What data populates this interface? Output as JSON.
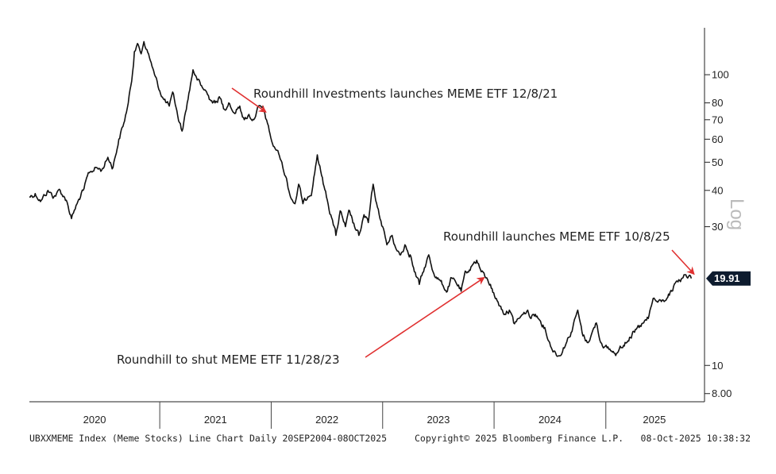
{
  "chart_data": {
    "type": "line",
    "y_scale": "log",
    "ylabel": "Log",
    "ylim": [
      7.5,
      145
    ],
    "y_ticks": [
      8,
      10,
      30,
      40,
      50,
      60,
      70,
      80,
      100
    ],
    "y_tick_labels": [
      "8.00",
      "10",
      "30",
      "40",
      "50",
      "60",
      "70",
      "80",
      "100"
    ],
    "x_range": [
      "2019-11-01",
      "2025-11-15"
    ],
    "x_year_labels": [
      "2020",
      "2021",
      "2022",
      "2023",
      "2024",
      "2025"
    ],
    "grid": false,
    "last_value_label": "19.91",
    "series": [
      {
        "name": "",
        "color": "#111111",
        "points": [
          [
            "2019-11-01",
            38
          ],
          [
            "2019-11-20",
            39
          ],
          [
            "2019-12-10",
            37
          ],
          [
            "2020-01-01",
            40
          ],
          [
            "2020-01-20",
            38
          ],
          [
            "2020-02-10",
            40
          ],
          [
            "2020-03-01",
            37
          ],
          [
            "2020-03-18",
            32
          ],
          [
            "2020-04-05",
            36
          ],
          [
            "2020-04-25",
            40
          ],
          [
            "2020-05-15",
            46
          ],
          [
            "2020-06-05",
            48
          ],
          [
            "2020-06-25",
            47
          ],
          [
            "2020-07-15",
            52
          ],
          [
            "2020-08-01",
            48
          ],
          [
            "2020-08-20",
            60
          ],
          [
            "2020-09-05",
            68
          ],
          [
            "2020-09-20",
            80
          ],
          [
            "2020-10-01",
            95
          ],
          [
            "2020-10-10",
            120
          ],
          [
            "2020-10-20",
            128
          ],
          [
            "2020-11-01",
            118
          ],
          [
            "2020-11-10",
            130
          ],
          [
            "2020-11-20",
            122
          ],
          [
            "2020-12-01",
            112
          ],
          [
            "2020-12-15",
            100
          ],
          [
            "2021-01-01",
            88
          ],
          [
            "2021-01-15",
            82
          ],
          [
            "2021-02-01",
            78
          ],
          [
            "2021-02-15",
            86
          ],
          [
            "2021-03-01",
            72
          ],
          [
            "2021-03-15",
            64
          ],
          [
            "2021-04-01",
            80
          ],
          [
            "2021-04-20",
            104
          ],
          [
            "2021-05-01",
            98
          ],
          [
            "2021-05-15",
            92
          ],
          [
            "2021-06-01",
            88
          ],
          [
            "2021-06-15",
            82
          ],
          [
            "2021-07-01",
            80
          ],
          [
            "2021-07-15",
            84
          ],
          [
            "2021-08-01",
            76
          ],
          [
            "2021-08-15",
            80
          ],
          [
            "2021-09-01",
            74
          ],
          [
            "2021-09-20",
            78
          ],
          [
            "2021-10-05",
            70
          ],
          [
            "2021-10-20",
            73
          ],
          [
            "2021-11-05",
            70
          ],
          [
            "2021-11-20",
            78
          ],
          [
            "2021-12-08",
            76
          ],
          [
            "2021-12-20",
            68
          ],
          [
            "2022-01-05",
            58
          ],
          [
            "2022-01-20",
            55
          ],
          [
            "2022-02-05",
            50
          ],
          [
            "2022-02-20",
            44
          ],
          [
            "2022-03-05",
            38
          ],
          [
            "2022-03-20",
            36
          ],
          [
            "2022-04-01",
            42
          ],
          [
            "2022-04-15",
            36
          ],
          [
            "2022-05-01",
            38
          ],
          [
            "2022-05-15",
            40
          ],
          [
            "2022-06-01",
            53
          ],
          [
            "2022-06-15",
            45
          ],
          [
            "2022-07-01",
            38
          ],
          [
            "2022-07-15",
            33
          ],
          [
            "2022-08-01",
            28
          ],
          [
            "2022-08-15",
            34
          ],
          [
            "2022-09-01",
            30
          ],
          [
            "2022-09-15",
            34
          ],
          [
            "2022-10-01",
            30
          ],
          [
            "2022-10-15",
            28
          ],
          [
            "2022-11-01",
            33
          ],
          [
            "2022-11-15",
            31
          ],
          [
            "2022-12-01",
            42
          ],
          [
            "2022-12-15",
            35
          ],
          [
            "2023-01-01",
            30
          ],
          [
            "2023-01-15",
            26
          ],
          [
            "2023-02-01",
            28
          ],
          [
            "2023-02-15",
            25
          ],
          [
            "2023-03-01",
            24
          ],
          [
            "2023-03-15",
            26
          ],
          [
            "2023-04-01",
            24
          ],
          [
            "2023-04-15",
            21
          ],
          [
            "2023-05-01",
            19
          ],
          [
            "2023-05-15",
            21
          ],
          [
            "2023-06-01",
            24
          ],
          [
            "2023-06-15",
            21
          ],
          [
            "2023-07-01",
            20
          ],
          [
            "2023-07-15",
            19
          ],
          [
            "2023-08-01",
            18
          ],
          [
            "2023-08-15",
            20
          ],
          [
            "2023-09-01",
            19
          ],
          [
            "2023-09-15",
            18
          ],
          [
            "2023-10-01",
            21
          ],
          [
            "2023-10-20",
            22
          ],
          [
            "2023-11-05",
            23
          ],
          [
            "2023-11-20",
            21
          ],
          [
            "2023-12-05",
            20
          ],
          [
            "2023-12-20",
            19
          ],
          [
            "2024-01-05",
            17
          ],
          [
            "2024-01-20",
            16
          ],
          [
            "2024-02-05",
            15
          ],
          [
            "2024-02-20",
            15.5
          ],
          [
            "2024-03-05",
            14
          ],
          [
            "2024-03-20",
            14.5
          ],
          [
            "2024-04-05",
            15
          ],
          [
            "2024-04-20",
            15.5
          ],
          [
            "2024-05-01",
            14.5
          ],
          [
            "2024-05-15",
            15
          ],
          [
            "2024-06-01",
            14.2
          ],
          [
            "2024-06-15",
            13.5
          ],
          [
            "2024-07-01",
            12
          ],
          [
            "2024-07-15",
            11.2
          ],
          [
            "2024-08-01",
            10.8
          ],
          [
            "2024-08-15",
            11.5
          ],
          [
            "2024-09-01",
            12.5
          ],
          [
            "2024-09-15",
            13.5
          ],
          [
            "2024-10-01",
            15.5
          ],
          [
            "2024-10-15",
            13
          ],
          [
            "2024-11-01",
            12
          ],
          [
            "2024-11-15",
            12.8
          ],
          [
            "2024-12-01",
            14
          ],
          [
            "2024-12-15",
            12
          ],
          [
            "2025-01-05",
            11.5
          ],
          [
            "2025-01-20",
            11.2
          ],
          [
            "2025-02-05",
            11
          ],
          [
            "2025-02-20",
            11.5
          ],
          [
            "2025-03-05",
            12
          ],
          [
            "2025-03-20",
            12.5
          ],
          [
            "2025-04-05",
            13
          ],
          [
            "2025-04-20",
            13.5
          ],
          [
            "2025-05-05",
            14
          ],
          [
            "2025-05-20",
            14.5
          ],
          [
            "2025-06-05",
            17
          ],
          [
            "2025-06-20",
            16.5
          ],
          [
            "2025-07-05",
            16.8
          ],
          [
            "2025-07-20",
            17
          ],
          [
            "2025-08-05",
            18
          ],
          [
            "2025-08-20",
            19.5
          ],
          [
            "2025-09-05",
            19.8
          ],
          [
            "2025-09-20",
            20.5
          ],
          [
            "2025-10-08",
            19.91
          ]
        ]
      }
    ],
    "annotations": [
      {
        "text": "Roundhill Investments launches MEME ETF 12/8/21",
        "target": [
          "2021-12-08",
          76
        ]
      },
      {
        "text": "Roundhill launches MEME ETF 10/8/25",
        "target": [
          "2025-10-08",
          19.91
        ]
      },
      {
        "text": "Roundhill to shut MEME ETF 11/28/23",
        "target": [
          "2023-11-28",
          19.5
        ]
      }
    ],
    "annotation_color": "#e03030",
    "footer": {
      "left": "UBXXMEME Index (Meme Stocks) Line Chart Daily 20SEP2004-08OCT2025",
      "center": "Copyright© 2025 Bloomberg Finance L.P.",
      "right": "08-Oct-2025 10:38:32"
    }
  }
}
